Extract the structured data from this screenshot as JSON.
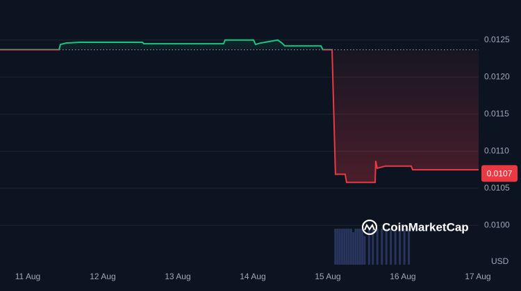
{
  "chart_data": {
    "type": "line",
    "currency": "USD",
    "watermark": "CoinMarketCap",
    "xlim": [
      10.63,
      17.01
    ],
    "xticks": [
      {
        "value": 11,
        "label": "11 Aug"
      },
      {
        "value": 12,
        "label": "12 Aug"
      },
      {
        "value": 13,
        "label": "13 Aug"
      },
      {
        "value": 14,
        "label": "14 Aug"
      },
      {
        "value": 15,
        "label": "15 Aug"
      },
      {
        "value": 16,
        "label": "16 Aug"
      },
      {
        "value": 17,
        "label": "17 Aug"
      }
    ],
    "ylim": [
      0.00947,
      0.01304
    ],
    "yticks": [
      {
        "value": 0.01,
        "label": "0.0100"
      },
      0.0105,
      {
        "value": 0.011,
        "label": "0.0110"
      },
      0.0115,
      {
        "value": 0.012,
        "label": "0.0120"
      },
      0.0125
    ],
    "grid": true,
    "reference": 0.01237,
    "up_color": "#16c784",
    "down_color": "#ea3943",
    "series": [
      {
        "x": [
          10.63,
          11.417,
          11.436,
          11.51,
          11.695,
          12.528,
          12.546,
          13.611,
          13.63,
          14.01,
          14.037,
          14.102,
          14.333,
          14.389,
          14.426,
          14.907,
          14.935,
          15.056,
          15.102,
          15.231,
          15.25,
          15.63,
          15.639,
          15.657,
          15.769,
          16.111,
          16.13,
          17.01
        ],
        "values": [
          0.01237,
          0.01237,
          0.01244,
          0.01246,
          0.01247,
          0.01247,
          0.01245,
          0.01245,
          0.0125,
          0.0125,
          0.01244,
          0.01246,
          0.0125,
          0.01246,
          0.01242,
          0.01242,
          0.01237,
          0.01237,
          0.01069,
          0.01069,
          0.01058,
          0.01058,
          0.01087,
          0.01077,
          0.0108,
          0.0108,
          0.01075,
          0.01075
        ]
      }
    ],
    "last_price": {
      "value": 0.0107,
      "label": "0.0107"
    },
    "volume": {
      "color": "#2f3a66",
      "x": [
        15.1,
        15.13,
        15.16,
        15.19,
        15.22,
        15.25,
        15.28,
        15.31,
        15.34,
        15.37,
        15.4,
        15.43,
        15.46,
        15.49,
        15.55,
        15.6,
        15.66,
        15.72,
        15.78,
        15.84,
        15.9,
        15.96,
        16.02,
        16.08
      ],
      "values": [
        1,
        1,
        1,
        1,
        1,
        1,
        1,
        1,
        0.9,
        1,
        1,
        1,
        1,
        0.8,
        1,
        1,
        1,
        1,
        1,
        1,
        1,
        1,
        1,
        1
      ]
    }
  }
}
